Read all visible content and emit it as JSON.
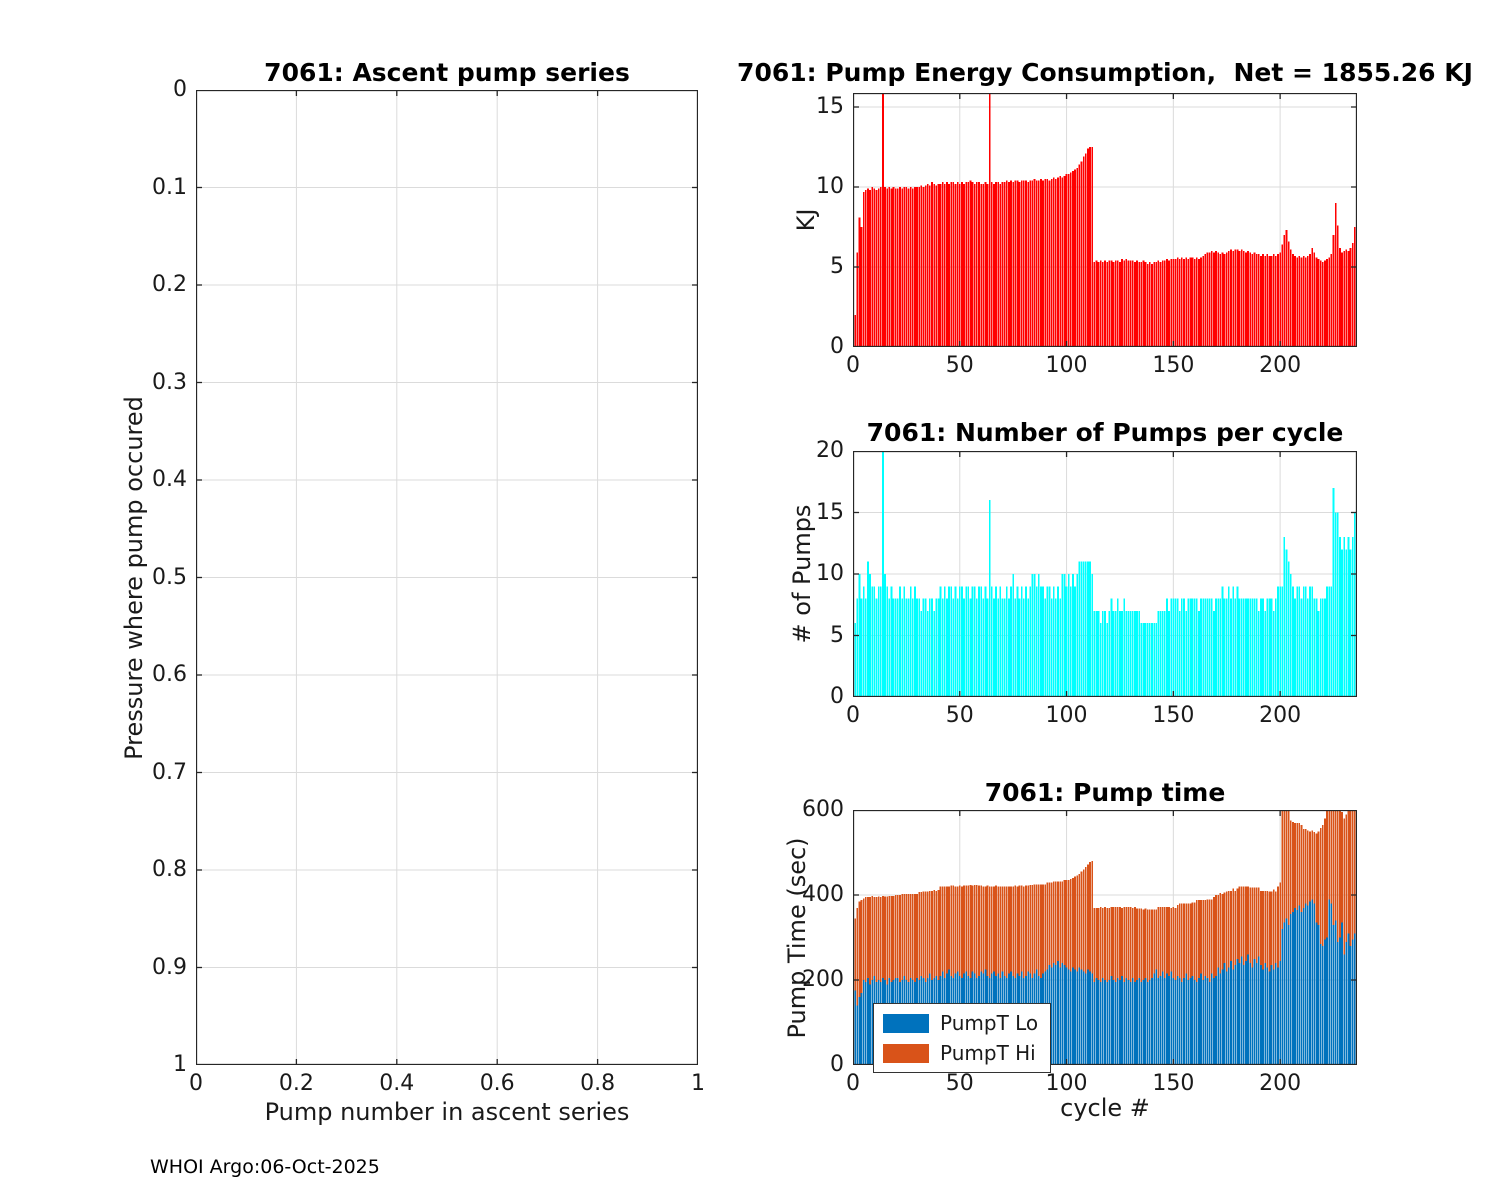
{
  "figure": {
    "footer": "WHOI Argo:06-Oct-2025"
  },
  "colors": {
    "energy_bar": "#FF0000",
    "pumps_bar": "#00FFFF",
    "time_lo": "#0072BD",
    "time_hi": "#D95319",
    "axis": "#262626",
    "grid": "#DBDBDB",
    "background": "#FFFFFF"
  },
  "chart_data": [
    {
      "id": "ascent",
      "type": "scatter",
      "title": "7061: Ascent pump series",
      "xlabel": "Pump number in ascent series",
      "ylabel": "Pressure where pump occured",
      "xlim": [
        0,
        1
      ],
      "ylim": [
        0,
        1
      ],
      "y_reversed": true,
      "grid": true,
      "xticks": [
        0,
        0.2,
        0.4,
        0.6,
        0.8,
        1
      ],
      "xtick_labels": [
        "0",
        "0.2",
        "0.4",
        "0.6",
        "0.8",
        "1"
      ],
      "yticks": [
        0,
        0.1,
        0.2,
        0.3,
        0.4,
        0.5,
        0.6,
        0.7,
        0.8,
        0.9,
        1
      ],
      "ytick_labels": [
        "0",
        "0.1",
        "0.2",
        "0.3",
        "0.4",
        "0.5",
        "0.6",
        "0.7",
        "0.8",
        "0.9",
        "1"
      ],
      "x": [],
      "y": []
    },
    {
      "id": "energy",
      "type": "bar",
      "title": "7061: Pump Energy Consumption,  Net = 1855.26 KJ",
      "xlabel": "",
      "ylabel": "KJ",
      "net_kj": 1855.26,
      "xlim": [
        0,
        236
      ],
      "ylim": [
        0,
        15.875
      ],
      "grid": true,
      "xticks": [
        0,
        50,
        100,
        150,
        200
      ],
      "xtick_labels": [
        "0",
        "50",
        "100",
        "150",
        "200"
      ],
      "yticks": [
        0,
        5,
        10,
        15
      ],
      "ytick_labels": [
        "0",
        "5",
        "10",
        "15"
      ],
      "color": "#FF0000",
      "values": [
        2.0,
        5.9,
        8.1,
        7.5,
        9.7,
        9.8,
        9.9,
        9.8,
        10.0,
        9.9,
        9.8,
        9.9,
        10.0,
        16.0,
        10.0,
        9.9,
        10.0,
        9.9,
        10.0,
        9.9,
        9.9,
        10.0,
        9.9,
        10.0,
        10.0,
        9.9,
        10.0,
        9.9,
        10.0,
        10.0,
        10.0,
        10.1,
        10.0,
        10.1,
        10.2,
        10.1,
        10.3,
        10.2,
        10.1,
        10.2,
        10.2,
        10.3,
        10.2,
        10.3,
        10.2,
        10.3,
        10.3,
        10.2,
        10.3,
        10.2,
        10.3,
        10.2,
        10.3,
        10.3,
        10.4,
        10.3,
        10.2,
        10.3,
        10.3,
        10.2,
        10.2,
        10.3,
        10.2,
        16.0,
        10.3,
        10.2,
        10.3,
        10.3,
        10.2,
        10.3,
        10.3,
        10.4,
        10.3,
        10.4,
        10.3,
        10.4,
        10.4,
        10.3,
        10.4,
        10.4,
        10.4,
        10.3,
        10.4,
        10.4,
        10.5,
        10.4,
        10.4,
        10.5,
        10.4,
        10.5,
        10.5,
        10.4,
        10.5,
        10.6,
        10.5,
        10.6,
        10.7,
        10.6,
        10.7,
        10.8,
        10.8,
        10.9,
        11.0,
        11.1,
        11.2,
        11.4,
        11.6,
        11.9,
        12.1,
        12.4,
        12.5,
        12.5,
        5.3,
        5.4,
        5.3,
        5.4,
        5.3,
        5.4,
        5.3,
        5.4,
        5.4,
        5.3,
        5.4,
        5.4,
        5.3,
        5.5,
        5.4,
        5.5,
        5.4,
        5.4,
        5.4,
        5.3,
        5.4,
        5.3,
        5.3,
        5.4,
        5.3,
        5.2,
        5.3,
        5.2,
        5.3,
        5.3,
        5.4,
        5.3,
        5.4,
        5.4,
        5.5,
        5.4,
        5.5,
        5.5,
        5.5,
        5.6,
        5.5,
        5.6,
        5.5,
        5.6,
        5.5,
        5.6,
        5.6,
        5.5,
        5.6,
        5.5,
        5.6,
        5.7,
        5.8,
        5.9,
        5.9,
        6.0,
        5.9,
        6.0,
        5.9,
        5.8,
        5.9,
        5.8,
        5.9,
        6.0,
        6.1,
        6.0,
        6.1,
        6.1,
        6.0,
        6.1,
        6.0,
        5.9,
        6.0,
        5.9,
        5.8,
        5.9,
        5.8,
        5.8,
        5.7,
        5.8,
        5.7,
        5.8,
        5.7,
        5.7,
        5.8,
        5.7,
        5.8,
        5.9,
        6.4,
        7.0,
        7.3,
        6.6,
        6.1,
        5.8,
        5.7,
        5.6,
        5.7,
        5.6,
        5.7,
        5.6,
        5.7,
        5.8,
        6.2,
        5.9,
        5.6,
        5.5,
        5.4,
        5.3,
        5.4,
        5.5,
        5.6,
        5.8,
        7.0,
        9.0,
        7.6,
        6.2,
        5.9,
        6.0,
        6.1,
        6.0,
        6.2,
        6.5,
        7.5
      ]
    },
    {
      "id": "pumps",
      "type": "bar",
      "title": "7061: Number of Pumps per cycle",
      "xlabel": "",
      "ylabel": "# of Pumps",
      "xlim": [
        0,
        236
      ],
      "ylim": [
        0,
        20
      ],
      "grid": true,
      "xticks": [
        0,
        50,
        100,
        150,
        200
      ],
      "xtick_labels": [
        "0",
        "50",
        "100",
        "150",
        "200"
      ],
      "yticks": [
        0,
        5,
        10,
        15,
        20
      ],
      "ytick_labels": [
        "0",
        "5",
        "10",
        "15",
        "20"
      ],
      "color": "#00FFFF",
      "values": [
        6,
        8,
        10,
        8,
        9,
        8,
        11,
        10,
        9,
        9,
        8,
        9,
        9,
        20,
        10,
        9,
        8,
        9,
        8,
        8,
        8,
        9,
        8,
        9,
        8,
        8,
        9,
        8,
        9,
        8,
        8,
        7,
        8,
        8,
        7,
        8,
        8,
        7,
        8,
        8,
        9,
        8,
        9,
        8,
        9,
        9,
        8,
        9,
        8,
        9,
        9,
        8,
        9,
        9,
        8,
        9,
        9,
        8,
        9,
        9,
        8,
        9,
        8,
        16,
        9,
        8,
        9,
        8,
        9,
        8,
        8,
        9,
        8,
        9,
        10,
        8,
        9,
        8,
        9,
        8,
        9,
        8,
        9,
        10,
        10,
        9,
        10,
        9,
        9,
        8,
        9,
        9,
        8,
        9,
        8,
        9,
        8,
        10,
        10,
        9,
        10,
        9,
        10,
        9,
        10,
        11,
        11,
        11,
        11,
        11,
        11,
        10,
        7,
        7,
        7,
        6,
        7,
        7,
        6,
        7,
        8,
        7,
        7,
        8,
        7,
        7,
        8,
        7,
        7,
        7,
        7,
        7,
        7,
        7,
        6,
        6,
        6,
        6,
        6,
        6,
        6,
        6,
        7,
        7,
        7,
        7,
        8,
        7,
        8,
        8,
        8,
        8,
        7,
        8,
        8,
        7,
        8,
        8,
        8,
        8,
        8,
        7,
        8,
        8,
        8,
        8,
        8,
        8,
        7,
        8,
        8,
        8,
        9,
        8,
        8,
        9,
        8,
        9,
        8,
        9,
        8,
        8,
        8,
        8,
        8,
        8,
        8,
        8,
        8,
        7,
        8,
        8,
        7,
        8,
        8,
        8,
        7,
        8,
        9,
        9,
        9,
        13,
        12,
        11,
        10,
        9,
        8,
        9,
        9,
        8,
        9,
        9,
        8,
        9,
        9,
        8,
        8,
        7,
        8,
        8,
        8,
        9,
        9,
        9,
        17,
        15,
        15,
        13,
        12,
        13,
        12,
        13,
        12,
        13,
        15
      ]
    },
    {
      "id": "time",
      "type": "stacked-bar",
      "title": "7061: Pump time",
      "xlabel": "cycle #",
      "ylabel": "Pump Time (sec)",
      "xlim": [
        0,
        236
      ],
      "ylim": [
        0,
        600
      ],
      "grid": true,
      "legend_position": "bottom-left",
      "xticks": [
        0,
        50,
        100,
        150,
        200
      ],
      "xtick_labels": [
        "0",
        "50",
        "100",
        "150",
        "200"
      ],
      "yticks": [
        0,
        200,
        400,
        600
      ],
      "ytick_labels": [
        "0",
        "200",
        "400",
        "600"
      ],
      "series": [
        {
          "name": "PumpT Lo",
          "color": "#0072BD",
          "values": [
            175,
            140,
            160,
            170,
            200,
            195,
            205,
            190,
            200,
            210,
            195,
            200,
            195,
            205,
            200,
            190,
            205,
            195,
            200,
            205,
            205,
            195,
            200,
            210,
            200,
            195,
            205,
            200,
            195,
            205,
            200,
            210,
            205,
            195,
            205,
            215,
            200,
            205,
            210,
            200,
            210,
            220,
            205,
            215,
            225,
            210,
            205,
            215,
            220,
            210,
            205,
            215,
            220,
            210,
            205,
            220,
            215,
            205,
            210,
            220,
            215,
            225,
            210,
            205,
            215,
            220,
            210,
            215,
            205,
            220,
            210,
            205,
            215,
            220,
            210,
            205,
            215,
            210,
            220,
            205,
            210,
            220,
            215,
            205,
            215,
            225,
            210,
            205,
            215,
            220,
            225,
            235,
            230,
            240,
            235,
            245,
            230,
            240,
            235,
            230,
            225,
            220,
            230,
            225,
            220,
            230,
            225,
            220,
            215,
            225,
            220,
            215,
            195,
            205,
            200,
            195,
            205,
            200,
            195,
            200,
            210,
            200,
            195,
            205,
            200,
            210,
            195,
            205,
            200,
            195,
            205,
            195,
            200,
            205,
            195,
            200,
            205,
            195,
            200,
            205,
            215,
            225,
            205,
            210,
            220,
            205,
            215,
            210,
            220,
            205,
            200,
            210,
            205,
            195,
            205,
            215,
            200,
            205,
            210,
            200,
            195,
            205,
            215,
            200,
            210,
            205,
            195,
            215,
            205,
            210,
            230,
            215,
            225,
            240,
            220,
            230,
            245,
            225,
            235,
            250,
            240,
            255,
            235,
            245,
            260,
            240,
            230,
            250,
            240,
            255,
            235,
            225,
            240,
            230,
            220,
            235,
            225,
            240,
            230,
            245,
            320,
            335,
            345,
            330,
            355,
            360,
            370,
            365,
            375,
            360,
            370,
            380,
            375,
            385,
            390,
            380,
            335,
            330,
            285,
            280,
            295,
            300,
            390,
            380,
            330,
            340,
            290,
            300,
            335,
            260,
            290,
            310,
            280,
            295,
            310
          ]
        },
        {
          "name": "PumpT Hi",
          "color": "#D95319",
          "values": [
            170,
            230,
            225,
            218,
            192,
            200,
            190,
            205,
            198,
            185,
            200,
            196,
            200,
            193,
            197,
            207,
            193,
            203,
            198,
            195,
            195,
            205,
            202,
            192,
            202,
            207,
            197,
            202,
            207,
            197,
            207,
            197,
            203,
            213,
            203,
            195,
            210,
            207,
            200,
            212,
            210,
            200,
            215,
            205,
            195,
            212,
            217,
            205,
            200,
            212,
            215,
            207,
            202,
            212,
            218,
            202,
            208,
            218,
            212,
            202,
            205,
            195,
            212,
            215,
            205,
            200,
            212,
            205,
            215,
            200,
            210,
            215,
            205,
            200,
            210,
            217,
            205,
            212,
            202,
            215,
            212,
            202,
            208,
            218,
            210,
            200,
            215,
            220,
            210,
            205,
            205,
            195,
            200,
            192,
            197,
            187,
            202,
            192,
            200,
            205,
            210,
            218,
            210,
            218,
            226,
            220,
            230,
            240,
            251,
            247,
            258,
            265,
            175,
            165,
            170,
            177,
            165,
            172,
            175,
            170,
            162,
            172,
            177,
            167,
            172,
            160,
            177,
            167,
            172,
            177,
            165,
            177,
            168,
            163,
            173,
            166,
            163,
            171,
            166,
            161,
            151,
            141,
            167,
            162,
            152,
            167,
            157,
            162,
            150,
            167,
            170,
            167,
            175,
            185,
            175,
            165,
            180,
            175,
            172,
            182,
            193,
            183,
            173,
            188,
            178,
            185,
            195,
            175,
            190,
            190,
            170,
            190,
            177,
            166,
            188,
            180,
            165,
            190,
            175,
            165,
            180,
            165,
            185,
            175,
            160,
            178,
            188,
            168,
            178,
            163,
            175,
            185,
            170,
            180,
            188,
            173,
            188,
            168,
            190,
            185,
            280,
            265,
            255,
            270,
            220,
            212,
            200,
            205,
            195,
            205,
            185,
            175,
            177,
            165,
            162,
            168,
            210,
            220,
            273,
            285,
            285,
            300,
            210,
            220,
            270,
            260,
            310,
            300,
            260,
            320,
            300,
            290,
            320,
            305,
            290
          ]
        }
      ]
    }
  ]
}
